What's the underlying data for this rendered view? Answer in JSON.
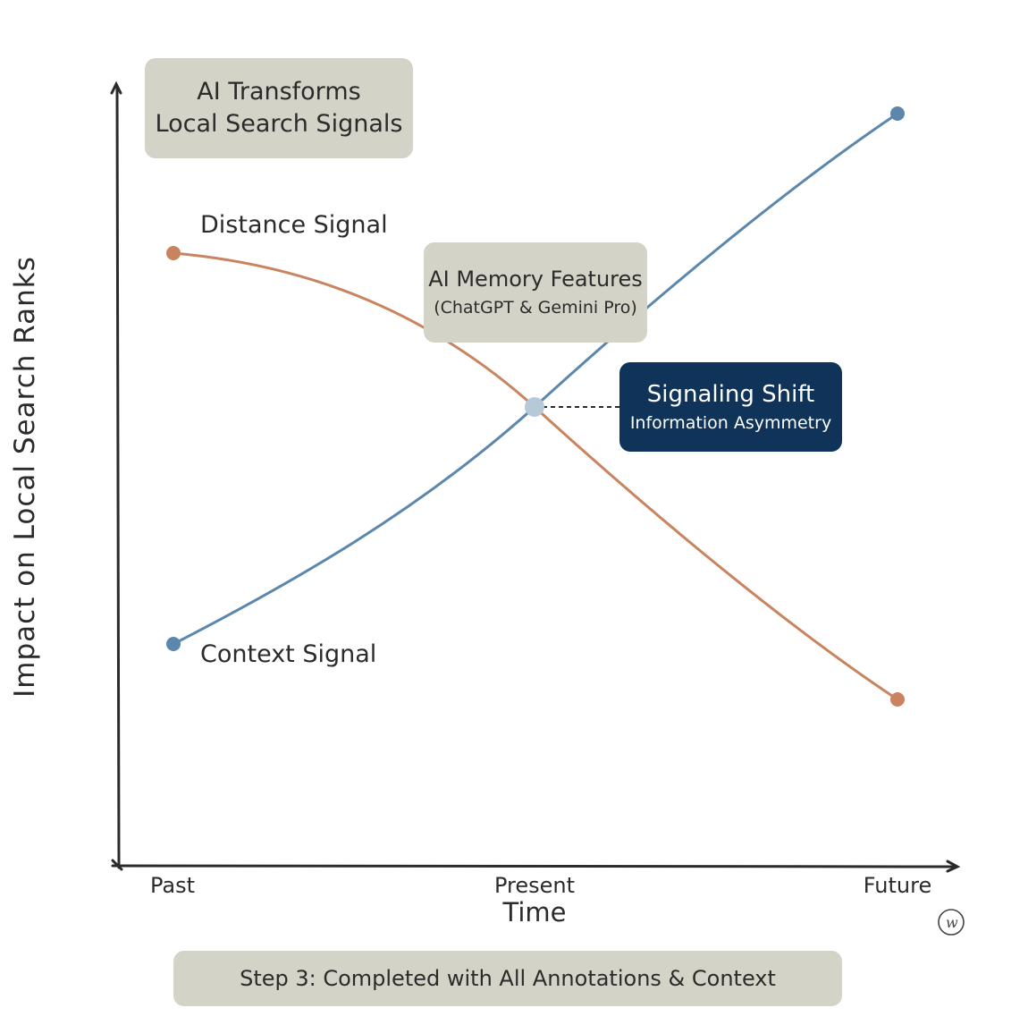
{
  "title": [
    "AI Transforms",
    "Local Search Signals"
  ],
  "x_axis": {
    "title": "Time",
    "ticks": [
      "Past",
      "Present",
      "Future"
    ]
  },
  "y_axis": {
    "title": "Impact on Local Search Ranks"
  },
  "series": {
    "distance": {
      "label": "Distance Signal",
      "color": "#c9845f"
    },
    "context": {
      "label": "Context Signal",
      "color": "#5b87ad"
    }
  },
  "intersection_color": "#b5c9d9",
  "annotations": {
    "memory": [
      "AI Memory Features",
      "(ChatGPT & Gemini Pro)"
    ],
    "shift": [
      "Signaling Shift",
      "Information Asymmetry"
    ]
  },
  "footer": "Step 3: Completed with All Annotations & Context",
  "signature": "w",
  "colors": {
    "box_gray": "#d4d3c7",
    "box_navy": "#0f3359",
    "axis": "#2b2b2b"
  }
}
